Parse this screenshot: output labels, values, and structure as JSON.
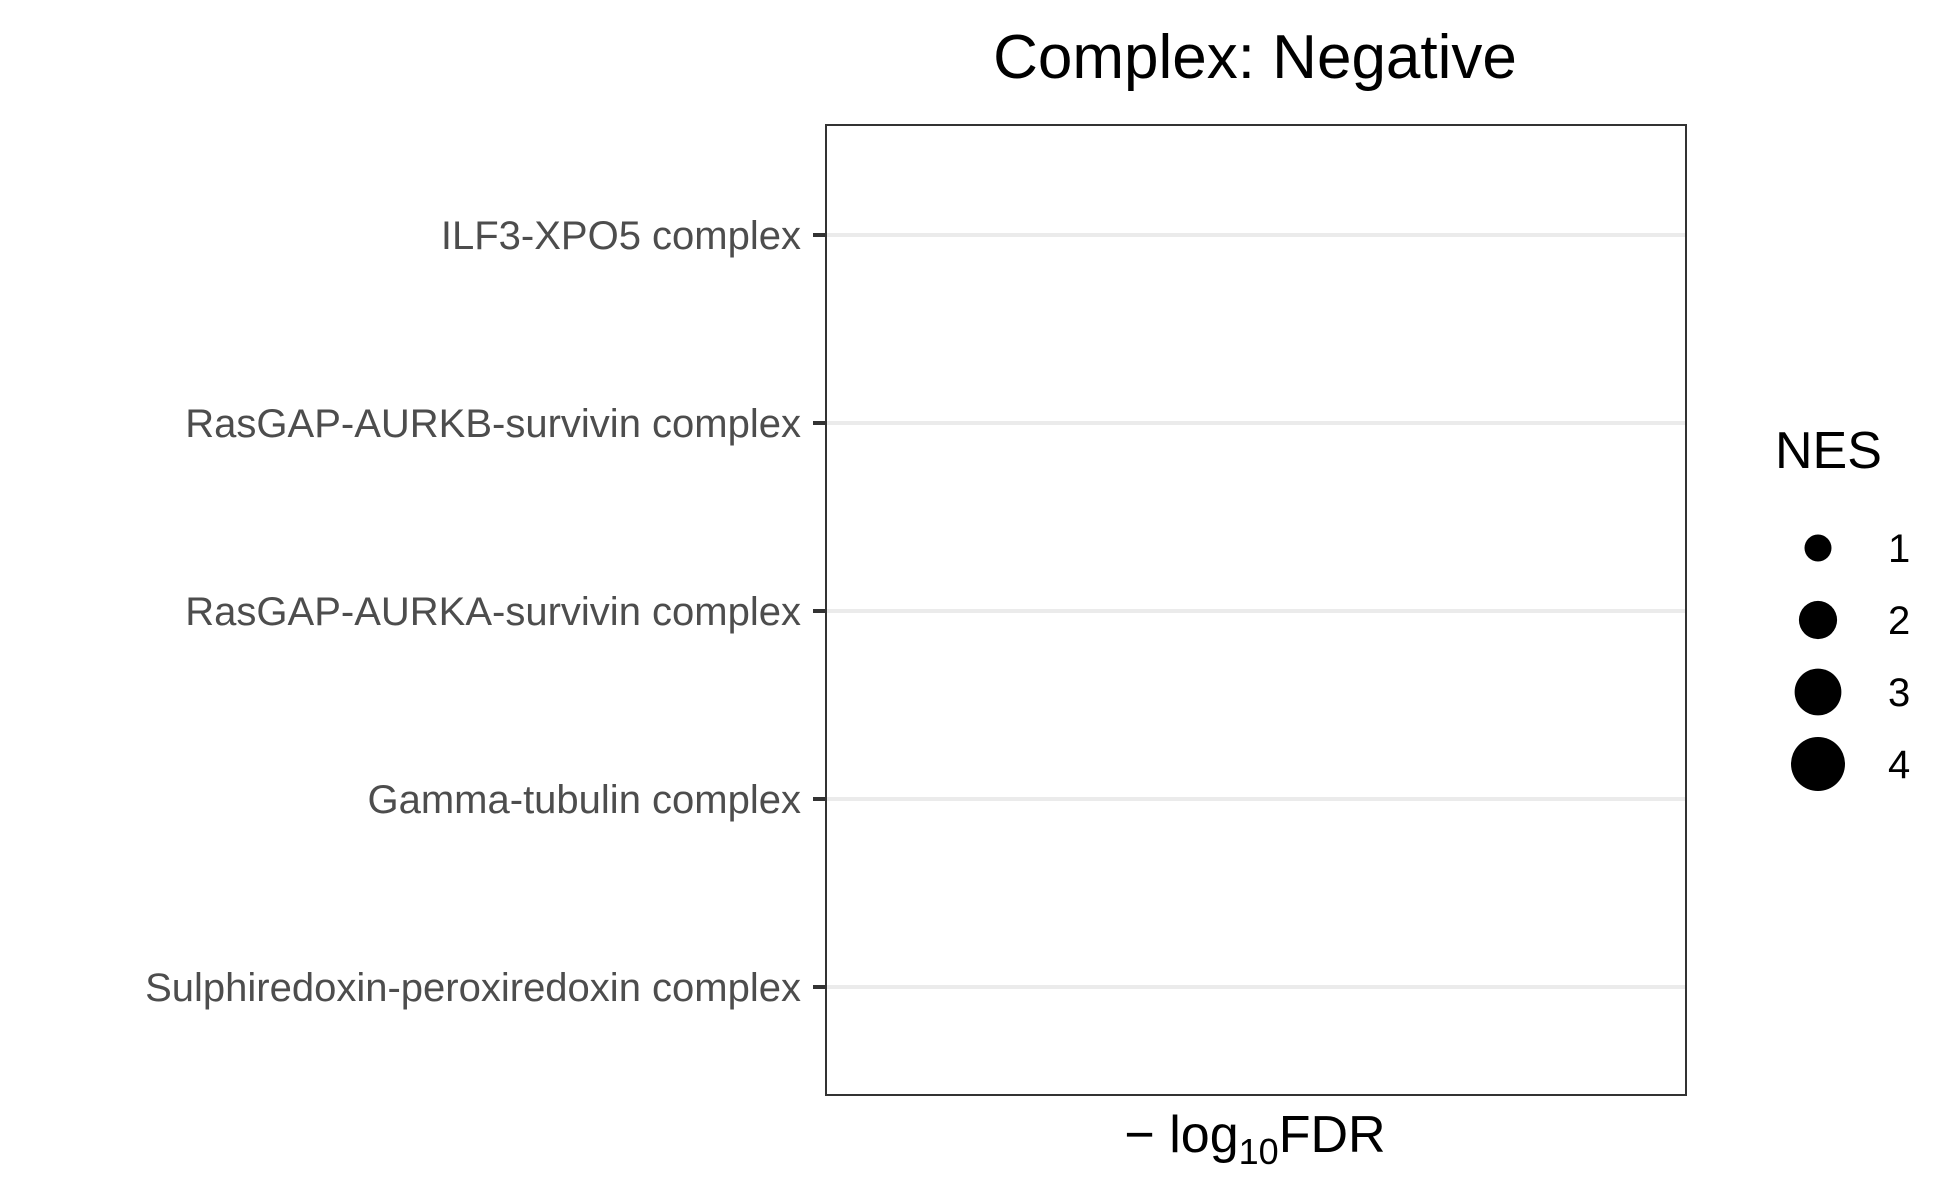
{
  "chart_data": {
    "type": "scatter",
    "title": "Complex: Negative",
    "xlabel": {
      "prefix": "− log",
      "subscript": "10",
      "suffix": "FDR"
    },
    "ylabel": "",
    "categories": [
      "ILF3-XPO5 complex",
      "RasGAP-AURKB-survivin complex",
      "RasGAP-AURKA-survivin complex",
      "Gamma-tubulin complex",
      "Sulphiredoxin-peroxiredoxin complex"
    ],
    "series": [
      {
        "points": []
      }
    ],
    "grid": "horizontal",
    "size_legend": {
      "title": "NES",
      "placement": "right",
      "items": [
        {
          "label": "1",
          "value": 1
        },
        {
          "label": "2",
          "value": 2
        },
        {
          "label": "3",
          "value": 3
        },
        {
          "label": "4",
          "value": 4
        }
      ]
    },
    "colors": {
      "grid": "#ebebeb",
      "panel_border": "#333333",
      "tick": "#333333",
      "tick_label": "#4d4d4d",
      "marker": "#000000"
    }
  }
}
